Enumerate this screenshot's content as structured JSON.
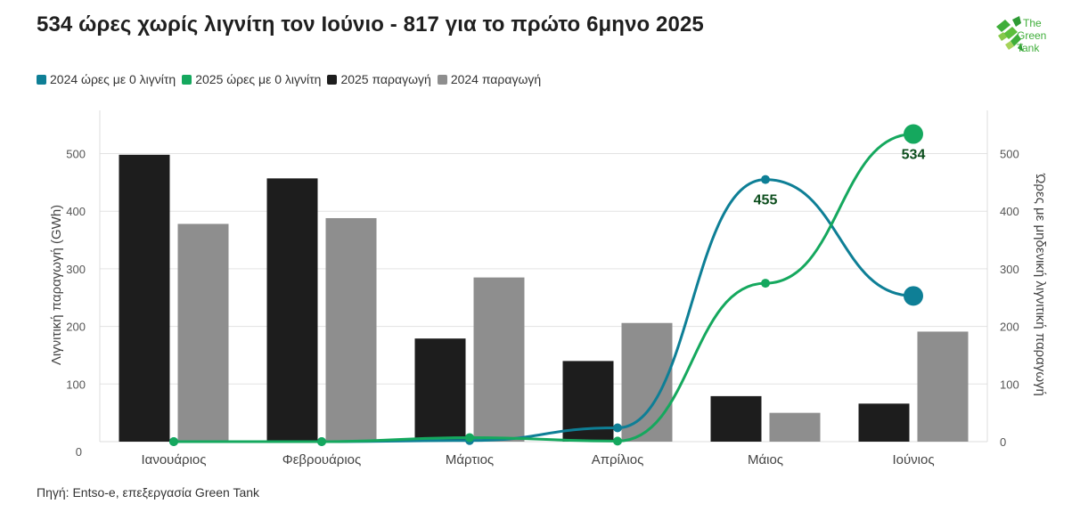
{
  "title": "534 ώρες χωρίς λιγνίτη τον Ιούνιο - 817 για το πρώτο 6μηνο 2025",
  "logo": {
    "line1": "The",
    "line2": "Green",
    "line3": "Tank"
  },
  "source": "Πηγή: Entso-e, επεξεργασία Green Tank",
  "legend": [
    {
      "label": "2024 ώρες με 0 λιγνίτη",
      "color": "#0e7f96"
    },
    {
      "label": "2025 ώρες με 0 λιγνίτη",
      "color": "#15a85e"
    },
    {
      "label": "2025 παραγωγή",
      "color": "#1d1d1d"
    },
    {
      "label": "2024 παραγωγή",
      "color": "#8e8e8e"
    }
  ],
  "chart_data": {
    "type": "bar",
    "title": "534 ώρες χωρίς λιγνίτη τον Ιούνιο - 817 για το πρώτο 6μηνο 2025",
    "categories": [
      "Ιανουάριος",
      "Φεβρουάριος",
      "Μάρτιος",
      "Απρίλιος",
      "Μάιος",
      "Ιούνιος"
    ],
    "ylabel": "Λιγνιτική παραγωγή (GWh)",
    "y2label": "Ώρες με μηδενική λιγνιτική παραγωγή",
    "ylim": [
      0,
      575
    ],
    "y2lim": [
      0,
      575
    ],
    "yticks": [
      100,
      200,
      300,
      400,
      500
    ],
    "y2ticks": [
      0,
      100,
      200,
      300,
      400,
      500
    ],
    "y_zero_label": "0",
    "grid": true,
    "legend_position": "top-left",
    "bar_series": [
      {
        "name": "2025 παραγωγή",
        "color": "#1d1d1d",
        "values": [
          498,
          457,
          179,
          140,
          79,
          66
        ]
      },
      {
        "name": "2024 παραγωγή",
        "color": "#8e8e8e",
        "values": [
          378,
          388,
          285,
          206,
          50,
          191
        ]
      }
    ],
    "line_series": [
      {
        "name": "2024 ώρες με 0 λιγνίτη",
        "color": "#0e7f96",
        "axis": "right",
        "values": [
          0,
          0,
          2,
          24,
          455,
          253
        ]
      },
      {
        "name": "2025 ώρες με 0 λιγνίτη",
        "color": "#15a85e",
        "axis": "right",
        "values": [
          0,
          0,
          7,
          1,
          275,
          534
        ]
      }
    ],
    "annotations": [
      {
        "series": "2024 ώρες με 0 λιγνίτη",
        "category": "Μάιος",
        "text": "455"
      },
      {
        "series": "2025 ώρες με 0 λιγνίτη",
        "category": "Ιούνιος",
        "text": "534"
      }
    ]
  }
}
